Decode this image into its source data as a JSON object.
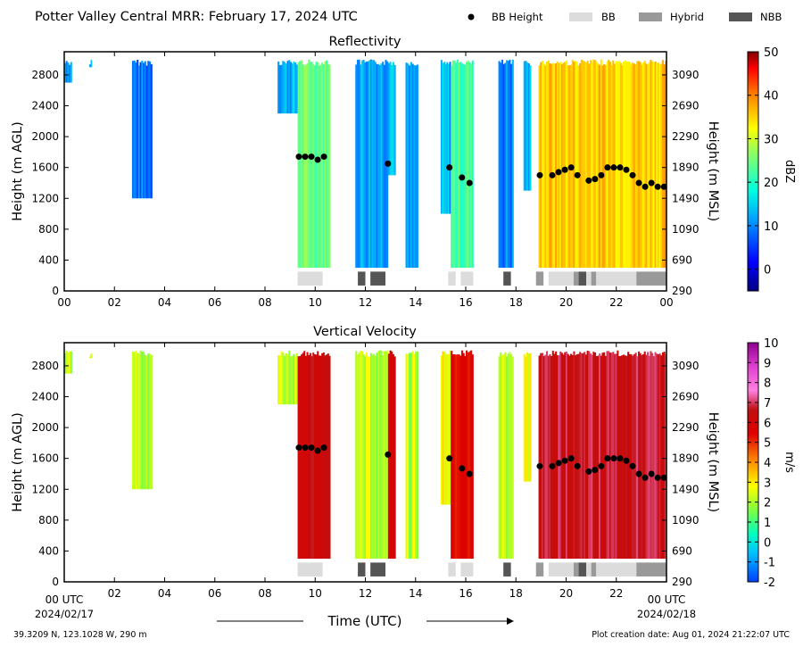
{
  "header": {
    "title": "Potter Valley Central MRR:  February 17, 2024 UTC",
    "legend": [
      {
        "label": "BB Height",
        "kind": "dot",
        "color": "#000000"
      },
      {
        "label": "BB",
        "kind": "swatch",
        "color": "#dcdcdc"
      },
      {
        "label": "Hybrid",
        "kind": "swatch",
        "color": "#999999"
      },
      {
        "label": "NBB",
        "kind": "swatch",
        "color": "#555555"
      }
    ]
  },
  "footer": {
    "location": "39.3209 N, 123.1028 W, 290 m",
    "created": "Plot creation date: Aug 01, 2024 21:22:07 UTC",
    "xlabel": "Time (UTC)",
    "start_tick": "00 UTC",
    "end_tick": "00 UTC",
    "start_date": "2024/02/17",
    "end_date": "2024/02/18"
  },
  "chart_data": [
    {
      "type": "heatmap",
      "title": "Reflectivity",
      "ylabel": "Height (m AGL)",
      "ylabel_right": "Height (m MSL)",
      "colorbar_label": "dBZ",
      "colorbar_ticks": [
        0,
        10,
        20,
        30,
        40,
        50
      ],
      "colorbar_range": [
        -5,
        50
      ],
      "xlim": [
        0,
        24
      ],
      "ylim": [
        0,
        3100
      ],
      "x_ticks": [
        "00",
        "02",
        "04",
        "06",
        "08",
        "10",
        "12",
        "14",
        "16",
        "18",
        "20",
        "22",
        "00"
      ],
      "y_ticks": [
        0,
        400,
        800,
        1200,
        1600,
        2000,
        2400,
        2800
      ],
      "y_ticks_right": [
        290,
        690,
        1090,
        1490,
        1890,
        2290,
        2690,
        3090
      ],
      "precip_periods": [
        {
          "start": 0.0,
          "end": 0.3,
          "bottom": 2700,
          "value": 8
        },
        {
          "start": 1.0,
          "end": 1.1,
          "bottom": 2900,
          "value": 8
        },
        {
          "start": 2.7,
          "end": 3.5,
          "bottom": 1200,
          "value": 5
        },
        {
          "start": 8.5,
          "end": 9.3,
          "bottom": 2300,
          "value": 8
        },
        {
          "start": 9.3,
          "end": 10.6,
          "bottom": 300,
          "value": 18
        },
        {
          "start": 11.6,
          "end": 12.9,
          "bottom": 300,
          "value": 8
        },
        {
          "start": 12.9,
          "end": 13.2,
          "bottom": 1500,
          "value": 10
        },
        {
          "start": 13.6,
          "end": 14.1,
          "bottom": 300,
          "value": 6
        },
        {
          "start": 15.0,
          "end": 15.4,
          "bottom": 1000,
          "value": 8
        },
        {
          "start": 15.4,
          "end": 16.3,
          "bottom": 300,
          "value": 16
        },
        {
          "start": 17.3,
          "end": 17.9,
          "bottom": 300,
          "value": 6
        },
        {
          "start": 18.3,
          "end": 18.6,
          "bottom": 1300,
          "value": 8
        },
        {
          "start": 18.9,
          "end": 24.0,
          "bottom": 300,
          "value": 28
        }
      ],
      "bb_height": {
        "hours": [
          9.35,
          9.6,
          9.85,
          10.1,
          10.35,
          12.9,
          15.35,
          15.85,
          16.15,
          18.95,
          19.45,
          19.7,
          19.95,
          20.2,
          20.45,
          20.9,
          21.15,
          21.4,
          21.65,
          21.9,
          22.15,
          22.4,
          22.65,
          22.9,
          23.15,
          23.4,
          23.65,
          23.9
        ],
        "heights": [
          1740,
          1740,
          1740,
          1700,
          1740,
          1650,
          1600,
          1470,
          1400,
          1500,
          1500,
          1540,
          1570,
          1600,
          1500,
          1430,
          1450,
          1500,
          1600,
          1600,
          1600,
          1570,
          1500,
          1400,
          1350,
          1400,
          1350,
          1350
        ]
      },
      "bb_flags": [
        {
          "start": 9.3,
          "end": 10.3,
          "kind": "BB"
        },
        {
          "start": 11.7,
          "end": 12.0,
          "kind": "NBB"
        },
        {
          "start": 12.2,
          "end": 12.8,
          "kind": "NBB"
        },
        {
          "start": 15.3,
          "end": 15.6,
          "kind": "BB"
        },
        {
          "start": 15.8,
          "end": 16.3,
          "kind": "BB"
        },
        {
          "start": 17.5,
          "end": 17.8,
          "kind": "NBB"
        },
        {
          "start": 18.8,
          "end": 19.1,
          "kind": "Hybrid"
        },
        {
          "start": 19.3,
          "end": 20.3,
          "kind": "BB"
        },
        {
          "start": 20.3,
          "end": 20.5,
          "kind": "Hybrid"
        },
        {
          "start": 20.5,
          "end": 20.8,
          "kind": "NBB"
        },
        {
          "start": 20.8,
          "end": 21.0,
          "kind": "BB"
        },
        {
          "start": 21.0,
          "end": 21.2,
          "kind": "Hybrid"
        },
        {
          "start": 21.2,
          "end": 22.8,
          "kind": "BB"
        },
        {
          "start": 22.8,
          "end": 24.0,
          "kind": "Hybrid"
        }
      ]
    },
    {
      "type": "heatmap",
      "title": "Vertical Velocity",
      "ylabel": "Height (m AGL)",
      "ylabel_right": "Height (m MSL)",
      "colorbar_label": "m/s",
      "colorbar_ticks": [
        -2,
        -1,
        0,
        1,
        2,
        3,
        4,
        5,
        6,
        7,
        8,
        9,
        10
      ],
      "colorbar_range": [
        -2,
        10
      ],
      "xlim": [
        0,
        24
      ],
      "ylim": [
        0,
        3100
      ],
      "x_ticks": [
        "",
        "02",
        "04",
        "06",
        "08",
        "10",
        "12",
        "14",
        "16",
        "18",
        "20",
        "22",
        ""
      ],
      "y_ticks": [
        0,
        400,
        800,
        1200,
        1600,
        2000,
        2400,
        2800
      ],
      "y_ticks_right": [
        290,
        690,
        1090,
        1490,
        1890,
        2290,
        2690,
        3090
      ],
      "precip_periods": [
        {
          "start": 0.0,
          "end": 0.3,
          "bottom": 2700,
          "value": 1.5
        },
        {
          "start": 1.0,
          "end": 1.1,
          "bottom": 2900,
          "value": 2
        },
        {
          "start": 2.7,
          "end": 3.5,
          "bottom": 1200,
          "value": 1.5
        },
        {
          "start": 8.5,
          "end": 9.3,
          "bottom": 2300,
          "value": 1.5
        },
        {
          "start": 9.3,
          "end": 10.6,
          "bottom": 300,
          "value": 6
        },
        {
          "start": 11.6,
          "end": 12.9,
          "bottom": 300,
          "value": 1.5
        },
        {
          "start": 12.9,
          "end": 13.2,
          "bottom": 300,
          "value": 6
        },
        {
          "start": 13.6,
          "end": 14.1,
          "bottom": 300,
          "value": 1.5
        },
        {
          "start": 15.0,
          "end": 15.4,
          "bottom": 1000,
          "value": 2
        },
        {
          "start": 15.4,
          "end": 16.3,
          "bottom": 300,
          "value": 5
        },
        {
          "start": 17.3,
          "end": 17.9,
          "bottom": 300,
          "value": 1.5
        },
        {
          "start": 18.3,
          "end": 18.6,
          "bottom": 1300,
          "value": 2
        },
        {
          "start": 18.9,
          "end": 24.0,
          "bottom": 300,
          "value": 6.5
        }
      ],
      "bb_height": {
        "hours": [
          9.35,
          9.6,
          9.85,
          10.1,
          10.35,
          12.9,
          15.35,
          15.85,
          16.15,
          18.95,
          19.45,
          19.7,
          19.95,
          20.2,
          20.45,
          20.9,
          21.15,
          21.4,
          21.65,
          21.9,
          22.15,
          22.4,
          22.65,
          22.9,
          23.15,
          23.4,
          23.65,
          23.9
        ],
        "heights": [
          1740,
          1740,
          1740,
          1700,
          1740,
          1650,
          1600,
          1470,
          1400,
          1500,
          1500,
          1540,
          1570,
          1600,
          1500,
          1430,
          1450,
          1500,
          1600,
          1600,
          1600,
          1570,
          1500,
          1400,
          1350,
          1400,
          1350,
          1350
        ]
      },
      "bb_flags": [
        {
          "start": 9.3,
          "end": 10.3,
          "kind": "BB"
        },
        {
          "start": 11.7,
          "end": 12.0,
          "kind": "NBB"
        },
        {
          "start": 12.2,
          "end": 12.8,
          "kind": "NBB"
        },
        {
          "start": 15.3,
          "end": 15.6,
          "kind": "BB"
        },
        {
          "start": 15.8,
          "end": 16.3,
          "kind": "BB"
        },
        {
          "start": 17.5,
          "end": 17.8,
          "kind": "NBB"
        },
        {
          "start": 18.8,
          "end": 19.1,
          "kind": "Hybrid"
        },
        {
          "start": 19.3,
          "end": 20.3,
          "kind": "BB"
        },
        {
          "start": 20.3,
          "end": 20.5,
          "kind": "Hybrid"
        },
        {
          "start": 20.5,
          "end": 20.8,
          "kind": "NBB"
        },
        {
          "start": 20.8,
          "end": 21.0,
          "kind": "BB"
        },
        {
          "start": 21.0,
          "end": 21.2,
          "kind": "Hybrid"
        },
        {
          "start": 21.2,
          "end": 22.8,
          "kind": "BB"
        },
        {
          "start": 22.8,
          "end": 24.0,
          "kind": "Hybrid"
        }
      ]
    }
  ]
}
